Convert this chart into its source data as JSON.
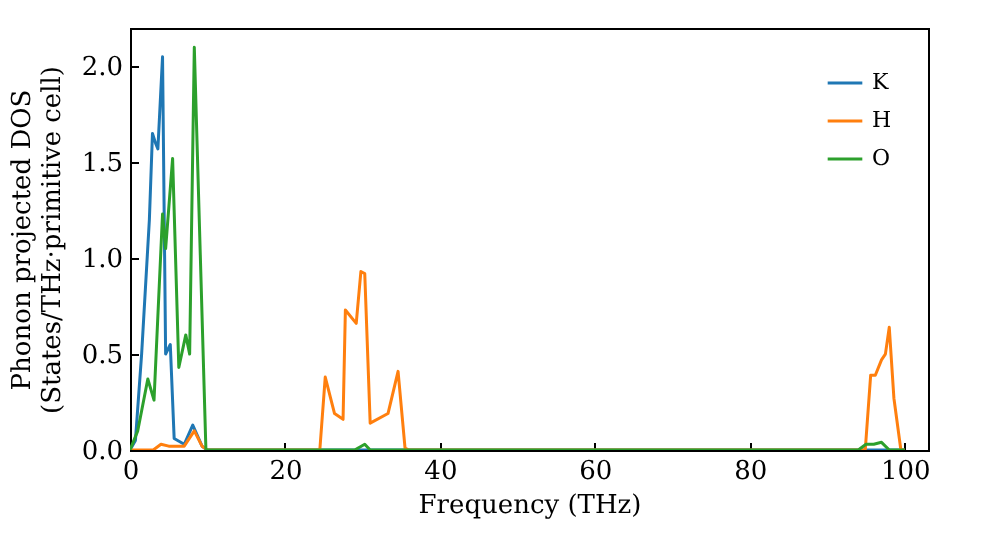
{
  "chart_data": {
    "type": "line",
    "xlabel": "Frequency (THz)",
    "ylabel": "Phonon projected DOS\n(States/THz·primitive cell)",
    "xlim": [
      0,
      103
    ],
    "ylim": [
      0,
      2.2
    ],
    "xticks": [
      0,
      20,
      40,
      60,
      80,
      100
    ],
    "yticks": [
      {
        "value": 0,
        "label": "0.0"
      },
      0.5,
      {
        "value": 1,
        "label": "1.0"
      },
      1.5,
      {
        "value": 2,
        "label": "2.0"
      }
    ],
    "legend": "top right",
    "series": [
      {
        "name": "K",
        "color": "#1f77b4",
        "x": [
          0,
          0.7,
          1.5,
          2.5,
          2.9,
          3.3,
          3.6,
          4.2,
          4.6,
          5.2,
          5.7,
          7,
          8.1,
          9.3,
          10,
          100
        ],
        "values": [
          0,
          0.05,
          0.5,
          1.2,
          1.65,
          1.6,
          1.57,
          2.05,
          0.5,
          0.55,
          0.06,
          0.03,
          0.13,
          0.02,
          0,
          0
        ]
      },
      {
        "name": "H",
        "color": "#ff7f0e",
        "x": [
          0,
          3,
          4,
          5,
          6,
          7,
          8.3,
          9.3,
          10,
          24.5,
          25.2,
          26.4,
          27.5,
          27.8,
          29.2,
          29.8,
          30.3,
          31,
          33.3,
          34.6,
          35.5,
          36,
          94.9,
          95.6,
          96.2,
          97,
          97.5,
          98,
          98.6,
          99.5,
          100
        ],
        "values": [
          0,
          0,
          0.03,
          0.02,
          0.02,
          0.02,
          0.1,
          0.02,
          0,
          0,
          0.38,
          0.19,
          0.16,
          0.73,
          0.66,
          0.93,
          0.92,
          0.14,
          0.19,
          0.41,
          0.01,
          0,
          0,
          0.39,
          0.39,
          0.47,
          0.5,
          0.64,
          0.27,
          0,
          0
        ]
      },
      {
        "name": "O",
        "color": "#2ca02c",
        "x": [
          0,
          1,
          2.3,
          3.1,
          4.2,
          4.6,
          5.5,
          6.3,
          7.2,
          7.7,
          8.3,
          9.8,
          10,
          29,
          30.3,
          31,
          94,
          95,
          96,
          97,
          98,
          100
        ],
        "values": [
          0,
          0.1,
          0.37,
          0.26,
          1.23,
          1.05,
          1.52,
          0.43,
          0.6,
          0.5,
          2.1,
          0,
          0,
          0,
          0.03,
          0,
          0,
          0.03,
          0.03,
          0.04,
          0,
          0
        ]
      }
    ]
  }
}
